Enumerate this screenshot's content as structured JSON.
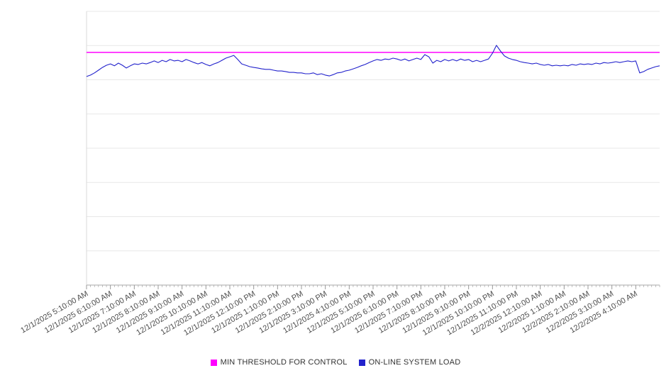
{
  "chart_data": {
    "type": "line",
    "title": "",
    "xlabel": "",
    "ylabel": "",
    "ylim": [
      0,
      100
    ],
    "grid": "horizontal",
    "grid_divisions": 8,
    "legend_position": "bottom",
    "x_interval_minutes": 10,
    "x_tick_every": 6,
    "x_tick_labels": [
      "12/1/2025 5:10:00 AM",
      "12/1/2025 6:10:00 AM",
      "12/1/2025 7:10:00 AM",
      "12/1/2025 8:10:00 AM",
      "12/1/2025 9:10:00 AM",
      "12/1/2025 10:10:00 AM",
      "12/1/2025 11:10:00 AM",
      "12/1/2025 12:10:00 PM",
      "12/1/2025 1:10:00 PM",
      "12/1/2025 2:10:00 PM",
      "12/1/2025 3:10:00 PM",
      "12/1/2025 4:10:00 PM",
      "12/1/2025 5:10:00 PM",
      "12/1/2025 6:10:00 PM",
      "12/1/2025 7:10:00 PM",
      "12/1/2025 8:10:00 PM",
      "12/1/2025 9:10:00 PM",
      "12/1/2025 10:10:00 PM",
      "12/1/2025 11:10:00 PM",
      "12/2/2025 12:10:00 AM",
      "12/2/2025 1:10:00 AM",
      "12/2/2025 2:10:00 AM",
      "12/2/2025 3:10:00 AM",
      "12/2/2025 4:10:00 AM"
    ],
    "series": [
      {
        "name": "MIN THRESHOLD FOR CONTROL",
        "type": "threshold",
        "color": "#ff00ff",
        "value": 85
      },
      {
        "name": "ON-LINE SYSTEM LOAD",
        "type": "line",
        "color": "#2222cc",
        "values": [
          76.2,
          76.7,
          77.5,
          78.5,
          79.5,
          80.3,
          80.8,
          80.1,
          81.1,
          80.3,
          79.3,
          80.1,
          80.8,
          80.6,
          81.1,
          80.8,
          81.3,
          81.9,
          81.3,
          82.1,
          81.6,
          82.4,
          81.9,
          82.1,
          81.6,
          82.4,
          81.9,
          81.3,
          80.8,
          81.3,
          80.6,
          80.1,
          80.8,
          81.3,
          82.1,
          82.9,
          83.4,
          83.9,
          82.4,
          80.8,
          80.3,
          79.8,
          79.5,
          79.3,
          79.0,
          78.8,
          78.8,
          78.5,
          78.2,
          78.2,
          78.0,
          77.7,
          77.7,
          77.5,
          77.5,
          77.2,
          77.2,
          77.5,
          76.9,
          77.2,
          76.7,
          76.4,
          76.9,
          77.5,
          77.7,
          78.2,
          78.5,
          79.0,
          79.5,
          80.1,
          80.6,
          81.3,
          81.9,
          82.4,
          82.1,
          82.6,
          82.4,
          82.9,
          82.6,
          82.1,
          82.6,
          81.9,
          82.4,
          82.9,
          82.4,
          84.2,
          83.4,
          81.1,
          82.1,
          81.6,
          82.4,
          81.9,
          82.4,
          81.9,
          82.6,
          82.1,
          82.4,
          81.6,
          82.1,
          81.6,
          82.1,
          82.6,
          84.7,
          87.6,
          85.5,
          83.7,
          82.9,
          82.4,
          82.1,
          81.6,
          81.3,
          81.1,
          80.8,
          81.1,
          80.6,
          80.3,
          80.6,
          80.1,
          80.3,
          80.1,
          80.3,
          80.1,
          80.6,
          80.3,
          80.8,
          80.6,
          80.8,
          80.6,
          81.1,
          80.8,
          81.3,
          81.1,
          81.3,
          81.6,
          81.3,
          81.6,
          81.9,
          81.6,
          81.9,
          77.5,
          78.0,
          78.8,
          79.3,
          79.8,
          80.1
        ]
      }
    ]
  },
  "legend": {
    "items": [
      {
        "label": "MIN THRESHOLD FOR CONTROL",
        "color": "#ff00ff"
      },
      {
        "label": "ON-LINE SYSTEM LOAD",
        "color": "#2222cc"
      }
    ]
  },
  "style": {
    "grid_color": "#e7e7e7",
    "axis_color": "#aaaaaa",
    "left_axis_color": "#d9d9d9",
    "tick_color": "#999999",
    "tick_label_color": "#4d4d4d"
  }
}
